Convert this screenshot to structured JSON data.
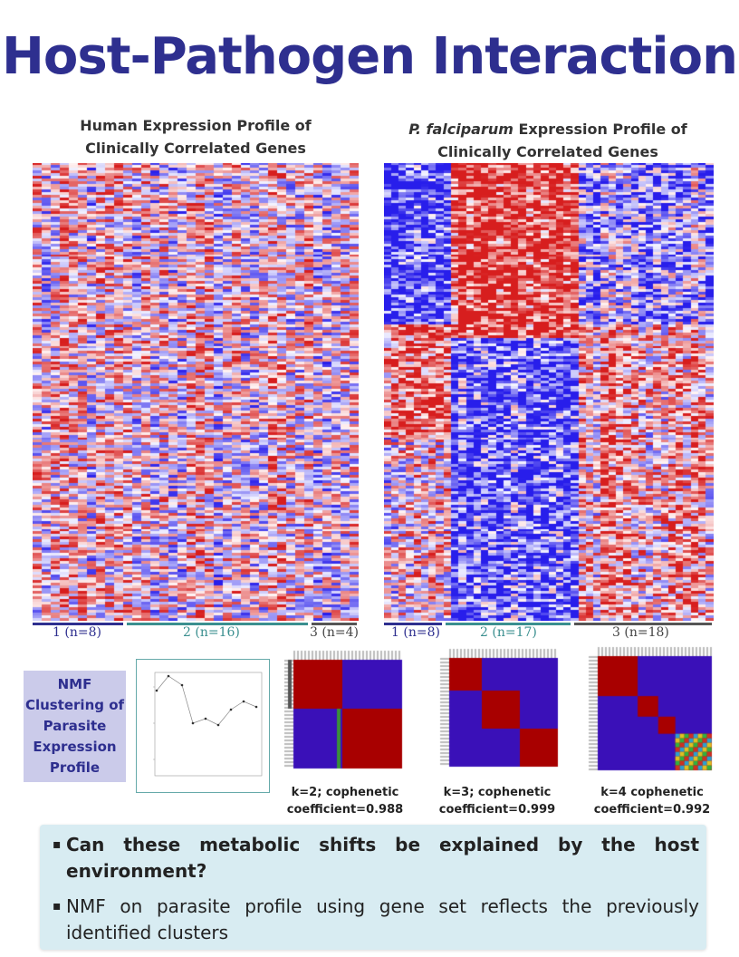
{
  "title": "Host-Pathogen Interaction",
  "left_panel": {
    "title_line1": "Human Expression Profile of",
    "title_line2": "Clinically Correlated Genes",
    "clusters": [
      {
        "label": "1 (n=8)",
        "color": "#2e2f8f"
      },
      {
        "label": "2 (n=16)",
        "color": "#3a8f8f"
      },
      {
        "label": "3 (n=4)",
        "color": "#555555"
      }
    ]
  },
  "right_panel": {
    "title_italic": "P. falciparum",
    "title_line1_rest": " Expression Profile of",
    "title_line2": "Clinically Correlated Genes",
    "clusters": [
      {
        "label": "1 (n=8)",
        "color": "#2e2f8f"
      },
      {
        "label": "2 (n=17)",
        "color": "#3a8f8f"
      },
      {
        "label": "3  (n=18)",
        "color": "#555555"
      }
    ]
  },
  "nmf_box": "NMF Clustering of Parasite Expression Profile",
  "consensus": [
    {
      "label_line1": "k=2; cophenetic",
      "label_line2": "coefficient=0.988"
    },
    {
      "label_line1": "k=3; cophenetic",
      "label_line2": "coefficient=0.999"
    },
    {
      "label_line1": "k=4 cophenetic",
      "label_line2": "coefficient=0.992"
    }
  ],
  "bullets": [
    {
      "text": "Can these metabolic shifts be explained by the host environment?"
    },
    {
      "text": "NMF on parasite profile using gene set reflects the previously identified clusters"
    }
  ],
  "colors": {
    "title": "#2e2f8f",
    "heat_red": "#d42020",
    "heat_blue": "#2b1fc4",
    "consensus_red": "#a80000",
    "consensus_blue": "#3a10b8"
  }
}
